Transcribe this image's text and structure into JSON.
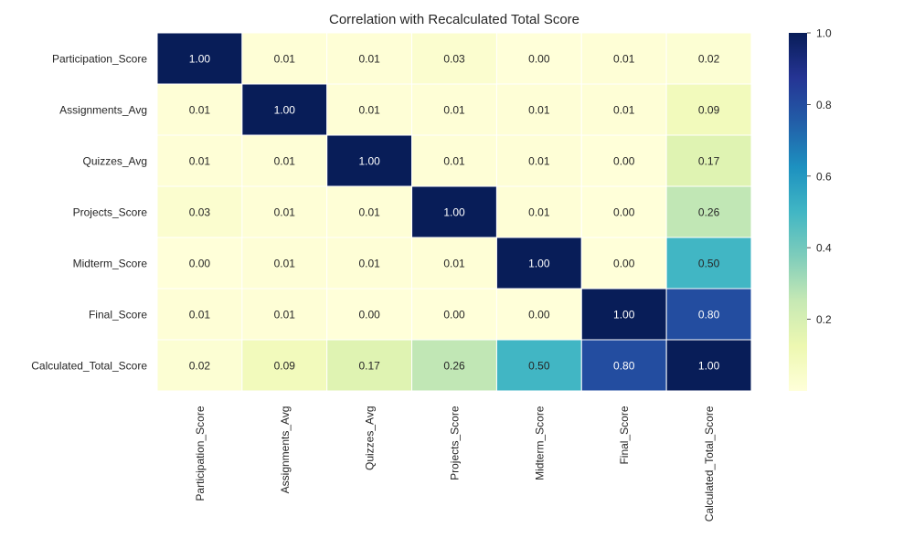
{
  "chart_data": {
    "type": "heatmap",
    "title": "Correlation with Recalculated Total Score",
    "rows": [
      "Participation_Score",
      "Assignments_Avg",
      "Quizzes_Avg",
      "Projects_Score",
      "Midterm_Score",
      "Final_Score",
      "Calculated_Total_Score"
    ],
    "columns": [
      "Participation_Score",
      "Assignments_Avg",
      "Quizzes_Avg",
      "Projects_Score",
      "Midterm_Score",
      "Final_Score",
      "Calculated_Total_Score"
    ],
    "values": [
      [
        1.0,
        0.01,
        0.01,
        0.03,
        0.0,
        0.01,
        0.02
      ],
      [
        0.01,
        1.0,
        0.01,
        0.01,
        0.01,
        0.01,
        0.09
      ],
      [
        0.01,
        0.01,
        1.0,
        0.01,
        0.01,
        0.0,
        0.17
      ],
      [
        0.03,
        0.01,
        0.01,
        1.0,
        0.01,
        0.0,
        0.26
      ],
      [
        0.0,
        0.01,
        0.01,
        0.01,
        1.0,
        0.0,
        0.5
      ],
      [
        0.01,
        0.01,
        0.0,
        0.0,
        0.0,
        1.0,
        0.8
      ],
      [
        0.02,
        0.09,
        0.17,
        0.26,
        0.5,
        0.8,
        1.0
      ]
    ],
    "value_format": "0.00",
    "colormap": "YlGnBu",
    "colorbar": {
      "range": [
        0.0,
        1.0
      ],
      "ticks": [
        0.2,
        0.4,
        0.6,
        0.8,
        1.0
      ],
      "tick_labels": [
        "0.2",
        "0.4",
        "0.6",
        "0.8",
        "1.0"
      ]
    },
    "cell_border_color": "#ffffff",
    "grid": false
  }
}
